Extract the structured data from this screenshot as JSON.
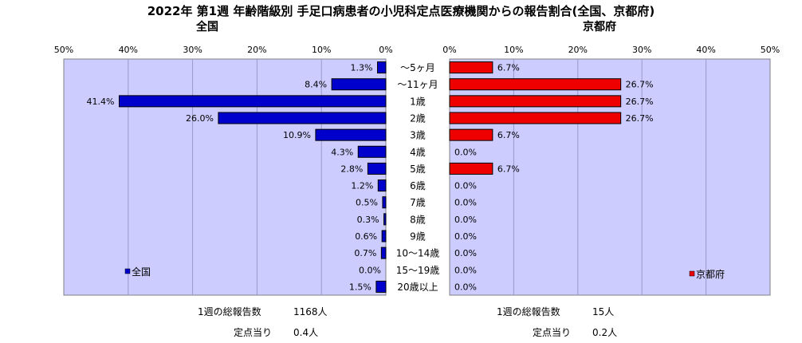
{
  "title": "2022年 第1週  年齢階級別 手足口病患者の小児科定点医療機関からの報告割合(全国、京都府)",
  "chart_data": [
    {
      "type": "bar",
      "orientation": "horizontal",
      "direction": "reversed",
      "subtitle": "全国",
      "legend": "全国",
      "legend_position": "bottom-left",
      "color": "#0000CC",
      "xlim": [
        0,
        50
      ],
      "x_ticks": [
        "50%",
        "40%",
        "30%",
        "20%",
        "10%",
        "0%"
      ],
      "categories": [
        "〜5ヶ月",
        "〜11ヶ月",
        "1歳",
        "2歳",
        "3歳",
        "4歳",
        "5歳",
        "6歳",
        "7歳",
        "8歳",
        "9歳",
        "10〜14歳",
        "15〜19歳",
        "20歳以上"
      ],
      "values": [
        1.3,
        8.4,
        41.4,
        26.0,
        10.9,
        4.3,
        2.8,
        1.2,
        0.5,
        0.3,
        0.6,
        0.7,
        0.0,
        1.5
      ],
      "value_labels": [
        "1.3%",
        "8.4%",
        "41.4%",
        "26.0%",
        "10.9%",
        "4.3%",
        "2.8%",
        "1.2%",
        "0.5%",
        "0.3%",
        "0.6%",
        "0.7%",
        "0.0%",
        "1.5%"
      ],
      "grid": true
    },
    {
      "type": "bar",
      "orientation": "horizontal",
      "subtitle": "京都府",
      "legend": "京都府",
      "legend_position": "bottom-right",
      "color": "#EE0000",
      "xlim": [
        0,
        50
      ],
      "x_ticks": [
        "0%",
        "10%",
        "20%",
        "30%",
        "40%",
        "50%"
      ],
      "categories": [
        "〜5ヶ月",
        "〜11ヶ月",
        "1歳",
        "2歳",
        "3歳",
        "4歳",
        "5歳",
        "6歳",
        "7歳",
        "8歳",
        "9歳",
        "10〜14歳",
        "15〜19歳",
        "20歳以上"
      ],
      "values": [
        6.7,
        26.7,
        26.7,
        26.7,
        6.7,
        0.0,
        6.7,
        0.0,
        0.0,
        0.0,
        0.0,
        0.0,
        0.0,
        0.0
      ],
      "value_labels": [
        "6.7%",
        "26.7%",
        "26.7%",
        "26.7%",
        "6.7%",
        "0.0%",
        "6.7%",
        "0.0%",
        "0.0%",
        "0.0%",
        "0.0%",
        "0.0%",
        "0.0%",
        "0.0%"
      ],
      "grid": true
    }
  ],
  "footer": {
    "national_total_label": "1週の総報告数",
    "national_total_value": "1168人",
    "national_per_label": "定点当り",
    "national_per_value": "0.4人",
    "kyoto_total_label": "1週の総報告数",
    "kyoto_total_value": "15人",
    "kyoto_per_label": "定点当り",
    "kyoto_per_value": "0.2人"
  }
}
